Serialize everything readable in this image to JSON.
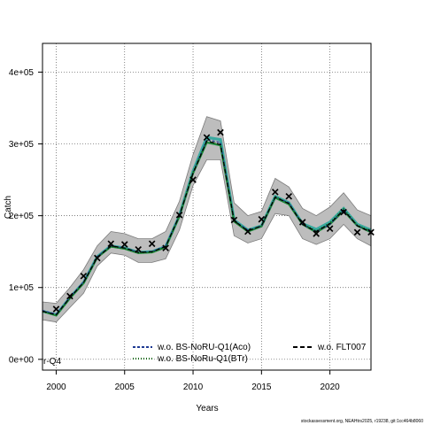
{
  "chart_data": {
    "type": "line",
    "xlabel": "Years",
    "ylabel": "Catch",
    "xlim": [
      1999,
      2023
    ],
    "ylim": [
      -15000,
      440000
    ],
    "x_ticks": [
      2000,
      2005,
      2010,
      2015,
      2020
    ],
    "x_tick_labels": [
      "2000",
      "2005",
      "2010",
      "2015",
      "2020"
    ],
    "y_ticks": [
      0,
      100000,
      200000,
      300000,
      400000
    ],
    "y_tick_labels": [
      "0e+00",
      "1e+05",
      "2e+05",
      "3e+05",
      "4e+05"
    ],
    "grid": true,
    "years": [
      1999,
      2000,
      2001,
      2002,
      2003,
      2004,
      2005,
      2006,
      2007,
      2008,
      2009,
      2010,
      2011,
      2012,
      2013,
      2014,
      2015,
      2016,
      2017,
      2018,
      2019,
      2020,
      2021,
      2022,
      2023
    ],
    "band": {
      "upper": [
        80000,
        78000,
        100000,
        125000,
        158000,
        178000,
        175000,
        168000,
        168000,
        178000,
        220000,
        285000,
        338000,
        332000,
        218000,
        200000,
        206000,
        252000,
        240000,
        210000,
        200000,
        212000,
        232000,
        208000,
        200000
      ],
      "lower": [
        55000,
        52000,
        72000,
        92000,
        130000,
        148000,
        145000,
        135000,
        135000,
        140000,
        180000,
        242000,
        278000,
        278000,
        172000,
        162000,
        168000,
        203000,
        200000,
        168000,
        160000,
        168000,
        188000,
        168000,
        158000
      ]
    },
    "series": [
      {
        "name": "w.o. BS-NoRU-Q1(Aco)",
        "color": "#1f3a93",
        "dash": "3,2",
        "values": [
          68000,
          63000,
          86000,
          108000,
          143000,
          158000,
          155000,
          149000,
          150000,
          158000,
          200000,
          260000,
          306000,
          302000,
          193000,
          180000,
          185000,
          226000,
          218000,
          188000,
          178000,
          188000,
          208000,
          186000,
          178000
        ]
      },
      {
        "name": "w.o. BS-NoRu-Q1(BTr)",
        "color": "#006400",
        "dash": "1,2",
        "values": [
          66000,
          62000,
          85000,
          107000,
          142000,
          157000,
          154000,
          148000,
          149000,
          157000,
          199000,
          261000,
          305000,
          299000,
          192000,
          178000,
          186000,
          227000,
          217000,
          189000,
          179000,
          190000,
          210000,
          187000,
          179000
        ]
      },
      {
        "name": "w.o. FLT007",
        "color": "#000000",
        "dash": "5,3",
        "values": [
          67000,
          62000,
          86000,
          107000,
          142000,
          158000,
          155000,
          149000,
          150000,
          157000,
          200000,
          259000,
          304000,
          299000,
          193000,
          179000,
          186000,
          226000,
          217000,
          188000,
          178000,
          189000,
          208000,
          186000,
          177000
        ]
      }
    ],
    "lines": {
      "teal": {
        "color": "#3aa9a0",
        "values": [
          67000,
          62000,
          86000,
          107000,
          143000,
          158000,
          155000,
          149000,
          150000,
          157000,
          200000,
          262000,
          309000,
          306000,
          194000,
          180000,
          186000,
          227000,
          218000,
          189000,
          181000,
          191000,
          210000,
          188000,
          180000
        ]
      },
      "green": {
        "color": "#1e8a3c",
        "values": [
          67000,
          61000,
          85000,
          106000,
          142000,
          157000,
          154000,
          148000,
          149000,
          156000,
          199000,
          259000,
          302000,
          298000,
          192000,
          178000,
          185000,
          225000,
          216000,
          188000,
          177000,
          188000,
          207000,
          186000,
          177000
        ]
      }
    },
    "observed": {
      "years": [
        2000,
        2001,
        2002,
        2003,
        2004,
        2005,
        2006,
        2007,
        2008,
        2009,
        2010,
        2011,
        2012,
        2013,
        2014,
        2015,
        2016,
        2017,
        2018,
        2019,
        2020,
        2021,
        2022,
        2023
      ],
      "values": [
        70000,
        88000,
        116000,
        141000,
        161000,
        160000,
        153000,
        161000,
        155000,
        201000,
        250000,
        309000,
        316000,
        194000,
        178000,
        195000,
        233000,
        227000,
        191000,
        175000,
        182000,
        205000,
        177000,
        177000
      ]
    },
    "extra_label": "r-Q4",
    "footer": "stockassessment.org, NEAHtrs2025, r19238, git:1cc464b8060"
  }
}
